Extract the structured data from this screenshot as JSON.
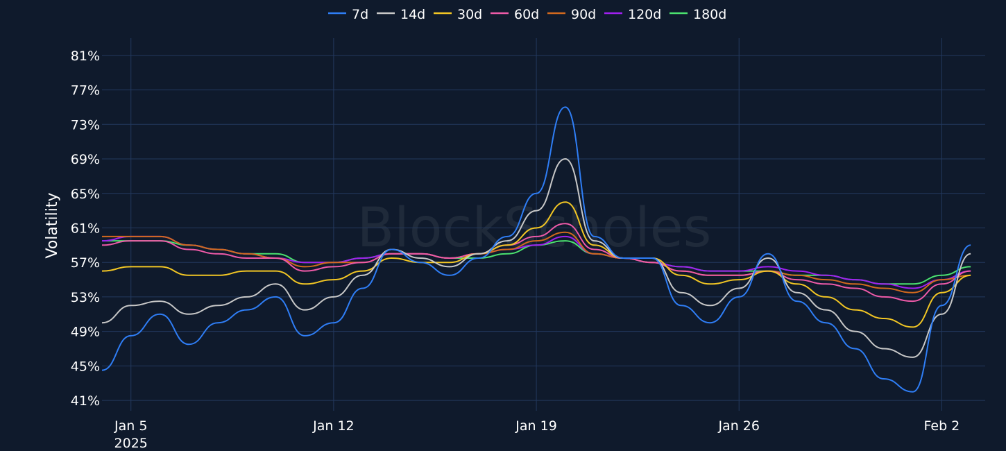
{
  "watermark": "BlockScholes",
  "chart_data": {
    "type": "line",
    "title": "",
    "xlabel": "",
    "ylabel": "Volatility",
    "y_unit": "%",
    "ylim": [
      39.8,
      83.0
    ],
    "y_ticks": [
      41,
      45,
      49,
      53,
      57,
      61,
      65,
      69,
      73,
      77,
      81
    ],
    "x_start": "2025-01-04",
    "x_end": "2025-02-03",
    "x_ticks": [
      {
        "date": "2025-01-05",
        "label": "Jan 5",
        "sublabel": "2025"
      },
      {
        "date": "2025-01-12",
        "label": "Jan 12",
        "sublabel": ""
      },
      {
        "date": "2025-01-19",
        "label": "Jan 19",
        "sublabel": ""
      },
      {
        "date": "2025-01-26",
        "label": "Jan 26",
        "sublabel": ""
      },
      {
        "date": "2025-02-02",
        "label": "Feb 2",
        "sublabel": ""
      }
    ],
    "grid": true,
    "legend_position": "top-center",
    "series": [
      {
        "name": "7d",
        "color": "#2f7ef6",
        "x": [
          "2025-01-04",
          "2025-01-05",
          "2025-01-06",
          "2025-01-07",
          "2025-01-08",
          "2025-01-09",
          "2025-01-10",
          "2025-01-11",
          "2025-01-12",
          "2025-01-13",
          "2025-01-14",
          "2025-01-15",
          "2025-01-16",
          "2025-01-17",
          "2025-01-18",
          "2025-01-19",
          "2025-01-20",
          "2025-01-21",
          "2025-01-22",
          "2025-01-23",
          "2025-01-24",
          "2025-01-25",
          "2025-01-26",
          "2025-01-27",
          "2025-01-28",
          "2025-01-29",
          "2025-01-30",
          "2025-01-31",
          "2025-02-01",
          "2025-02-02",
          "2025-02-03"
        ],
        "values": [
          44.5,
          48.5,
          51.0,
          47.5,
          50.0,
          51.5,
          53.0,
          48.5,
          50.0,
          54.0,
          58.5,
          57.0,
          55.5,
          57.5,
          60.0,
          65.0,
          75.0,
          60.0,
          57.5,
          57.5,
          52.0,
          50.0,
          53.0,
          58.0,
          52.5,
          50.0,
          47.0,
          43.5,
          42.0,
          52.0,
          59.0
        ]
      },
      {
        "name": "14d",
        "color": "#c8c8c8",
        "x": [
          "2025-01-04",
          "2025-01-05",
          "2025-01-06",
          "2025-01-07",
          "2025-01-08",
          "2025-01-09",
          "2025-01-10",
          "2025-01-11",
          "2025-01-12",
          "2025-01-13",
          "2025-01-14",
          "2025-01-15",
          "2025-01-16",
          "2025-01-17",
          "2025-01-18",
          "2025-01-19",
          "2025-01-20",
          "2025-01-21",
          "2025-01-22",
          "2025-01-23",
          "2025-01-24",
          "2025-01-25",
          "2025-01-26",
          "2025-01-27",
          "2025-01-28",
          "2025-01-29",
          "2025-01-30",
          "2025-01-31",
          "2025-02-01",
          "2025-02-02",
          "2025-02-03"
        ],
        "values": [
          50.0,
          52.0,
          52.5,
          51.0,
          52.0,
          53.0,
          54.5,
          51.5,
          53.0,
          55.5,
          58.5,
          57.5,
          56.5,
          58.0,
          59.5,
          63.0,
          69.0,
          59.5,
          57.5,
          57.5,
          53.5,
          52.0,
          54.0,
          57.5,
          53.5,
          51.5,
          49.0,
          47.0,
          46.0,
          51.0,
          58.0
        ]
      },
      {
        "name": "30d",
        "color": "#f2c624",
        "x": [
          "2025-01-04",
          "2025-01-05",
          "2025-01-06",
          "2025-01-07",
          "2025-01-08",
          "2025-01-09",
          "2025-01-10",
          "2025-01-11",
          "2025-01-12",
          "2025-01-13",
          "2025-01-14",
          "2025-01-15",
          "2025-01-16",
          "2025-01-17",
          "2025-01-18",
          "2025-01-19",
          "2025-01-20",
          "2025-01-21",
          "2025-01-22",
          "2025-01-23",
          "2025-01-24",
          "2025-01-25",
          "2025-01-26",
          "2025-01-27",
          "2025-01-28",
          "2025-01-29",
          "2025-01-30",
          "2025-01-31",
          "2025-02-01",
          "2025-02-02",
          "2025-02-03"
        ],
        "values": [
          56.0,
          56.5,
          56.5,
          55.5,
          55.5,
          56.0,
          56.0,
          54.5,
          55.0,
          56.0,
          57.5,
          57.0,
          57.0,
          58.0,
          59.0,
          61.0,
          64.0,
          59.0,
          57.5,
          57.5,
          55.5,
          54.5,
          55.0,
          56.0,
          54.5,
          53.0,
          51.5,
          50.5,
          49.5,
          53.5,
          55.5
        ]
      },
      {
        "name": "60d",
        "color": "#ee5aa8",
        "x": [
          "2025-01-04",
          "2025-01-05",
          "2025-01-06",
          "2025-01-07",
          "2025-01-08",
          "2025-01-09",
          "2025-01-10",
          "2025-01-11",
          "2025-01-12",
          "2025-01-13",
          "2025-01-14",
          "2025-01-15",
          "2025-01-16",
          "2025-01-17",
          "2025-01-18",
          "2025-01-19",
          "2025-01-20",
          "2025-01-21",
          "2025-01-22",
          "2025-01-23",
          "2025-01-24",
          "2025-01-25",
          "2025-01-26",
          "2025-01-27",
          "2025-01-28",
          "2025-01-29",
          "2025-01-30",
          "2025-01-31",
          "2025-02-01",
          "2025-02-02",
          "2025-02-03"
        ],
        "values": [
          59.0,
          59.5,
          59.5,
          58.5,
          58.0,
          57.5,
          57.5,
          56.0,
          56.5,
          57.0,
          58.0,
          58.0,
          57.5,
          58.0,
          59.0,
          60.0,
          61.5,
          58.5,
          57.5,
          57.0,
          56.0,
          55.5,
          55.5,
          56.0,
          55.0,
          54.5,
          54.0,
          53.0,
          52.5,
          54.5,
          56.0
        ]
      },
      {
        "name": "90d",
        "color": "#d2691e",
        "x": [
          "2025-01-04",
          "2025-01-05",
          "2025-01-06",
          "2025-01-07",
          "2025-01-08",
          "2025-01-09",
          "2025-01-10",
          "2025-01-11",
          "2025-01-12",
          "2025-01-13",
          "2025-01-14",
          "2025-01-15",
          "2025-01-16",
          "2025-01-17",
          "2025-01-18",
          "2025-01-19",
          "2025-01-20",
          "2025-01-21",
          "2025-01-22",
          "2025-01-23",
          "2025-01-24",
          "2025-01-25",
          "2025-01-26",
          "2025-01-27",
          "2025-01-28",
          "2025-01-29",
          "2025-01-30",
          "2025-01-31",
          "2025-02-01",
          "2025-02-02",
          "2025-02-03"
        ],
        "values": [
          60.0,
          60.0,
          60.0,
          59.0,
          58.5,
          58.0,
          57.5,
          56.5,
          57.0,
          57.0,
          58.0,
          58.0,
          57.5,
          58.0,
          58.5,
          59.5,
          60.5,
          58.0,
          57.5,
          57.0,
          56.0,
          55.5,
          55.5,
          56.0,
          55.5,
          55.0,
          54.5,
          54.0,
          53.5,
          55.0,
          55.5
        ]
      },
      {
        "name": "120d",
        "color": "#a020f0",
        "x": [
          "2025-01-04",
          "2025-01-05",
          "2025-01-06",
          "2025-01-07",
          "2025-01-08",
          "2025-01-09",
          "2025-01-10",
          "2025-01-11",
          "2025-01-12",
          "2025-01-13",
          "2025-01-14",
          "2025-01-15",
          "2025-01-16",
          "2025-01-17",
          "2025-01-18",
          "2025-01-19",
          "2025-01-20",
          "2025-01-21",
          "2025-01-22",
          "2025-01-23",
          "2025-01-24",
          "2025-01-25",
          "2025-01-26",
          "2025-01-27",
          "2025-01-28",
          "2025-01-29",
          "2025-01-30",
          "2025-01-31",
          "2025-02-01",
          "2025-02-02",
          "2025-02-03"
        ],
        "values": [
          59.5,
          60.0,
          60.0,
          59.0,
          58.5,
          58.0,
          57.5,
          57.0,
          57.0,
          57.5,
          58.0,
          58.0,
          57.5,
          58.0,
          58.5,
          59.0,
          60.0,
          58.0,
          57.5,
          57.0,
          56.5,
          56.0,
          56.0,
          56.5,
          56.0,
          55.5,
          55.0,
          54.5,
          54.0,
          55.0,
          56.0
        ]
      },
      {
        "name": "180d",
        "color": "#4be26f",
        "x": [
          "2025-01-04",
          "2025-01-05",
          "2025-01-06",
          "2025-01-07",
          "2025-01-08",
          "2025-01-09",
          "2025-01-10",
          "2025-01-11",
          "2025-01-12",
          "2025-01-13",
          "2025-01-14",
          "2025-01-15",
          "2025-01-16",
          "2025-01-17",
          "2025-01-18",
          "2025-01-19",
          "2025-01-20",
          "2025-01-21",
          "2025-01-22",
          "2025-01-23",
          "2025-01-24",
          "2025-01-25",
          "2025-01-26",
          "2025-01-27",
          "2025-01-28",
          "2025-01-29",
          "2025-01-30",
          "2025-01-31",
          "2025-02-01",
          "2025-02-02",
          "2025-02-03"
        ],
        "values": [
          59.5,
          59.5,
          59.5,
          59.0,
          58.5,
          58.0,
          58.0,
          57.0,
          57.0,
          57.5,
          58.0,
          58.0,
          57.5,
          57.5,
          58.0,
          59.0,
          59.5,
          58.0,
          57.5,
          57.0,
          56.5,
          56.0,
          56.0,
          56.0,
          55.5,
          55.5,
          55.0,
          54.5,
          54.5,
          55.5,
          56.5
        ]
      }
    ]
  }
}
